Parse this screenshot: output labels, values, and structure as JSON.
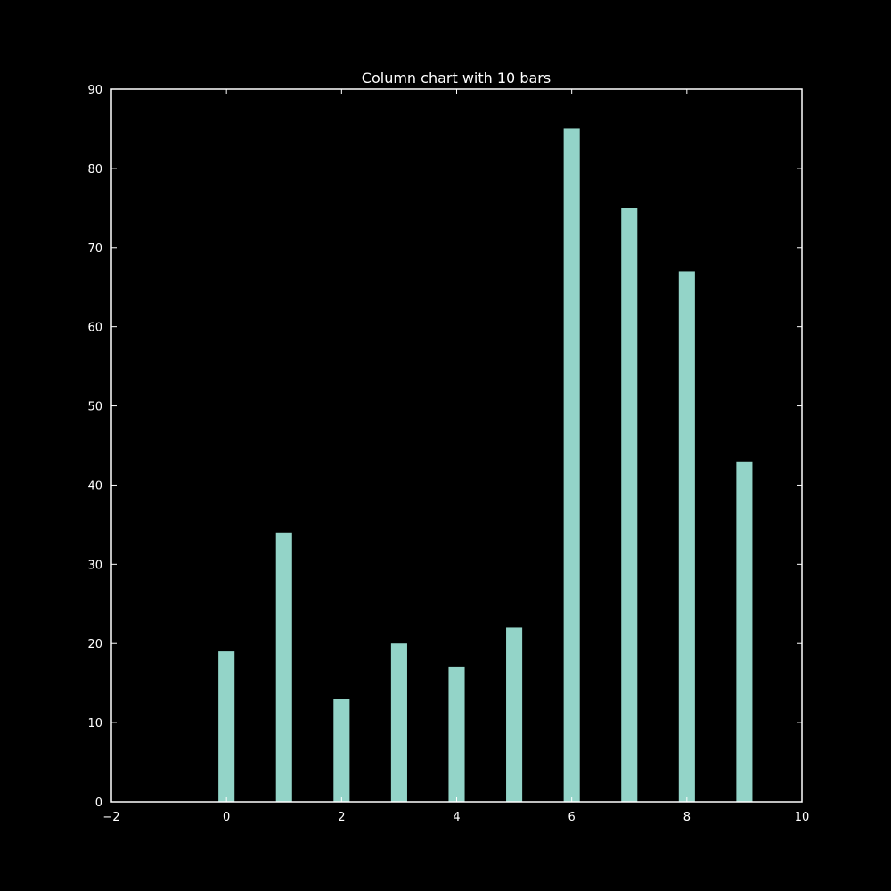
{
  "colors": {
    "background": "#000000",
    "bar": "#93d4c8",
    "axis": "#ffffff",
    "text": "#ffffff"
  },
  "chart_data": {
    "type": "bar",
    "title": "Column chart with 10 bars",
    "xlabel": "",
    "ylabel": "",
    "x": [
      0,
      1,
      2,
      3,
      4,
      5,
      6,
      7,
      8,
      9
    ],
    "values": [
      19,
      34,
      13,
      20,
      17,
      22,
      85,
      75,
      67,
      43
    ],
    "xlim": [
      -2,
      10
    ],
    "ylim": [
      0,
      90
    ],
    "xticks": [
      -2,
      0,
      2,
      4,
      6,
      8,
      10
    ],
    "yticks": [
      0,
      10,
      20,
      30,
      40,
      50,
      60,
      70,
      80,
      90
    ],
    "grid": false,
    "legend": "none"
  }
}
